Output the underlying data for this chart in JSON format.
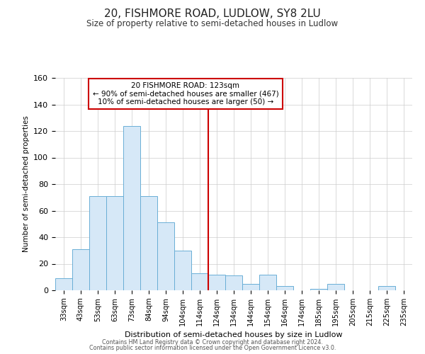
{
  "title": "20, FISHMORE ROAD, LUDLOW, SY8 2LU",
  "subtitle": "Size of property relative to semi-detached houses in Ludlow",
  "xlabel": "Distribution of semi-detached houses by size in Ludlow",
  "ylabel": "Number of semi-detached properties",
  "footer_line1": "Contains HM Land Registry data © Crown copyright and database right 2024.",
  "footer_line2": "Contains public sector information licensed under the Open Government Licence v3.0.",
  "bar_labels": [
    "33sqm",
    "43sqm",
    "53sqm",
    "63sqm",
    "73sqm",
    "84sqm",
    "94sqm",
    "104sqm",
    "114sqm",
    "124sqm",
    "134sqm",
    "144sqm",
    "154sqm",
    "164sqm",
    "174sqm",
    "185sqm",
    "195sqm",
    "205sqm",
    "215sqm",
    "225sqm",
    "235sqm"
  ],
  "bar_values": [
    9,
    31,
    71,
    71,
    124,
    71,
    51,
    30,
    13,
    12,
    11,
    5,
    12,
    3,
    0,
    1,
    5,
    0,
    0,
    3,
    0
  ],
  "bar_color": "#d6e8f7",
  "bar_edge_color": "#6aaed6",
  "ylim": [
    0,
    160
  ],
  "yticks": [
    0,
    20,
    40,
    60,
    80,
    100,
    120,
    140,
    160
  ],
  "vline_x_idx": 9.0,
  "vline_color": "#cc0000",
  "annotation_title": "20 FISHMORE ROAD: 123sqm",
  "annotation_line1": "← 90% of semi-detached houses are smaller (467)",
  "annotation_line2": "10% of semi-detached houses are larger (50) →",
  "bg_color": "#ffffff",
  "grid_color": "#cccccc",
  "title_fontsize": 11,
  "subtitle_fontsize": 8.5
}
